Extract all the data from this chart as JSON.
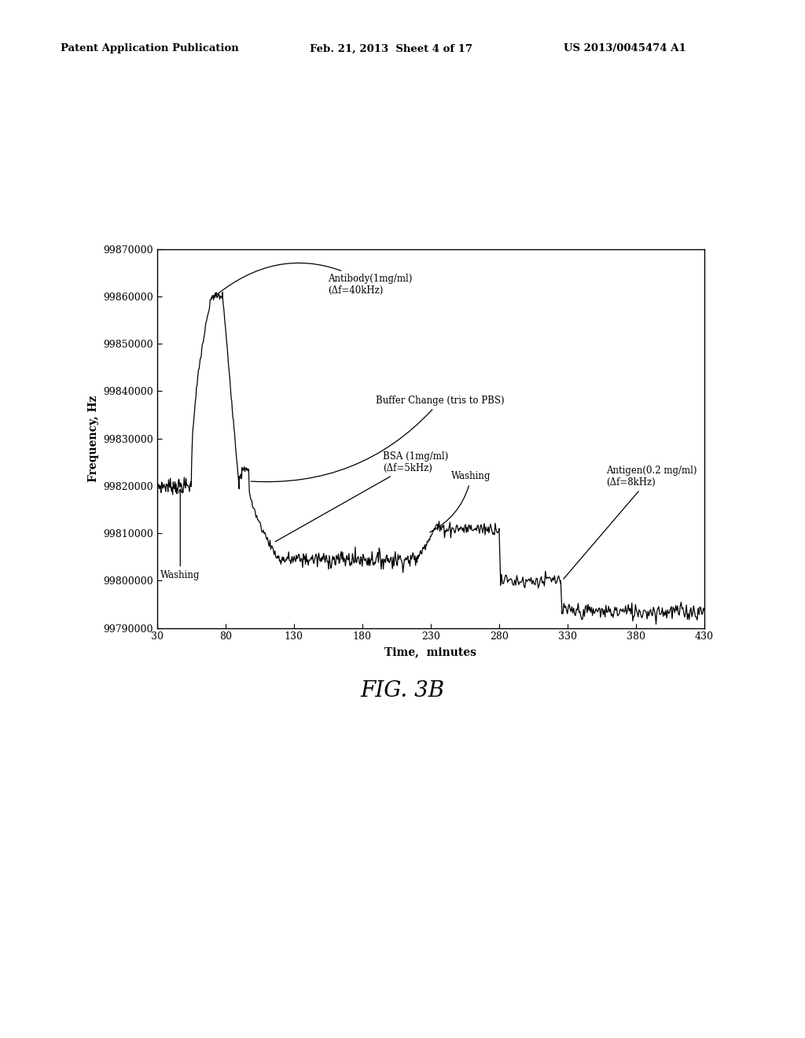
{
  "title": "",
  "xlabel": "Time,  minutes",
  "ylabel": "Frequency, Hz",
  "xlim": [
    30,
    430
  ],
  "ylim": [
    99790000,
    99870000
  ],
  "xticks": [
    30,
    80,
    130,
    180,
    230,
    280,
    330,
    380,
    430
  ],
  "yticks": [
    99790000,
    99800000,
    99810000,
    99820000,
    99830000,
    99840000,
    99850000,
    99860000,
    99870000
  ],
  "fig_caption": "FIG. 3B",
  "header_left": "Patent Application Publication",
  "header_center": "Feb. 21, 2013  Sheet 4 of 17",
  "header_right": "US 2013/0045474 A1",
  "line_color": "#000000",
  "background_color": "#ffffff"
}
